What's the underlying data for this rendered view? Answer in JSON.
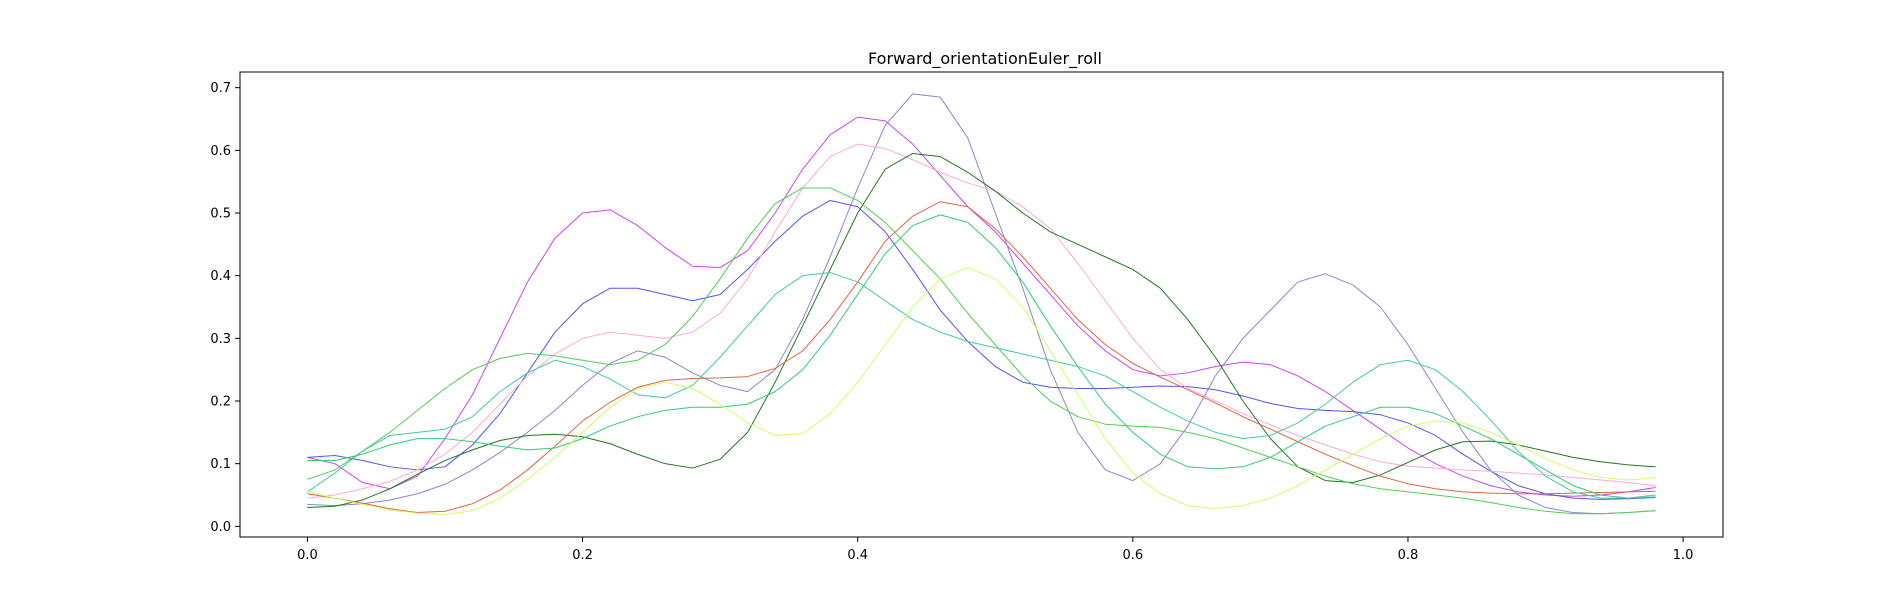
{
  "chart_data": {
    "type": "line",
    "title": "Forward_orientationEuler_roll",
    "xlabel": "",
    "ylabel": "",
    "xlim": [
      -0.049,
      1.029
    ],
    "ylim": [
      -0.017,
      0.725
    ],
    "xticks": [
      0.0,
      0.2,
      0.4,
      0.6,
      0.8,
      1.0
    ],
    "xtick_labels": [
      "0.0",
      "0.2",
      "0.4",
      "0.6",
      "0.8",
      "1.0"
    ],
    "yticks": [
      0.0,
      0.1,
      0.2,
      0.3,
      0.4,
      0.5,
      0.6,
      0.7
    ],
    "ytick_labels": [
      "0.0",
      "0.1",
      "0.2",
      "0.3",
      "0.4",
      "0.5",
      "0.6",
      "0.7"
    ],
    "grid": false,
    "x": [
      0.0,
      0.02,
      0.04,
      0.06,
      0.08,
      0.1,
      0.12,
      0.14,
      0.16,
      0.18,
      0.2,
      0.22,
      0.24,
      0.26,
      0.28,
      0.3,
      0.32,
      0.34,
      0.36,
      0.38,
      0.4,
      0.42,
      0.44,
      0.46,
      0.48,
      0.5,
      0.52,
      0.54,
      0.56,
      0.58,
      0.6,
      0.62,
      0.64,
      0.66,
      0.68,
      0.7,
      0.72,
      0.74,
      0.76,
      0.78,
      0.8,
      0.82,
      0.84,
      0.86,
      0.88,
      0.9,
      0.92,
      0.94,
      0.96,
      0.98
    ],
    "series": [
      {
        "name": "magenta",
        "color": "#cc44ee",
        "values": [
          0.11,
          0.1,
          0.07,
          0.06,
          0.08,
          0.14,
          0.21,
          0.3,
          0.39,
          0.46,
          0.5,
          0.505,
          0.48,
          0.445,
          0.415,
          0.413,
          0.44,
          0.5,
          0.57,
          0.625,
          0.653,
          0.647,
          0.61,
          0.56,
          0.51,
          0.47,
          0.42,
          0.37,
          0.32,
          0.28,
          0.25,
          0.24,
          0.245,
          0.255,
          0.262,
          0.258,
          0.24,
          0.215,
          0.185,
          0.155,
          0.125,
          0.1,
          0.08,
          0.065,
          0.055,
          0.05,
          0.048,
          0.05,
          0.055,
          0.062
        ]
      },
      {
        "name": "lavender",
        "color": "#8888cc",
        "values": [
          0.035,
          0.033,
          0.036,
          0.042,
          0.052,
          0.067,
          0.09,
          0.118,
          0.15,
          0.185,
          0.225,
          0.26,
          0.28,
          0.27,
          0.245,
          0.225,
          0.215,
          0.25,
          0.33,
          0.43,
          0.54,
          0.64,
          0.69,
          0.685,
          0.62,
          0.5,
          0.38,
          0.25,
          0.15,
          0.09,
          0.073,
          0.1,
          0.16,
          0.24,
          0.3,
          0.345,
          0.39,
          0.403,
          0.385,
          0.35,
          0.29,
          0.22,
          0.15,
          0.09,
          0.05,
          0.03,
          0.022,
          0.02,
          0.022,
          0.025
        ]
      },
      {
        "name": "blue",
        "color": "#5555ee",
        "values": [
          0.11,
          0.113,
          0.105,
          0.095,
          0.09,
          0.095,
          0.13,
          0.18,
          0.245,
          0.31,
          0.355,
          0.38,
          0.38,
          0.37,
          0.36,
          0.37,
          0.41,
          0.455,
          0.495,
          0.52,
          0.51,
          0.47,
          0.41,
          0.345,
          0.295,
          0.255,
          0.23,
          0.222,
          0.22,
          0.22,
          0.222,
          0.224,
          0.223,
          0.218,
          0.208,
          0.196,
          0.188,
          0.185,
          0.183,
          0.178,
          0.165,
          0.145,
          0.115,
          0.088,
          0.065,
          0.052,
          0.045,
          0.043,
          0.044,
          0.046
        ]
      },
      {
        "name": "pink",
        "color": "#ffaad4",
        "values": [
          0.045,
          0.05,
          0.06,
          0.072,
          0.09,
          0.115,
          0.15,
          0.195,
          0.24,
          0.275,
          0.3,
          0.31,
          0.305,
          0.3,
          0.31,
          0.34,
          0.395,
          0.47,
          0.54,
          0.59,
          0.61,
          0.603,
          0.585,
          0.565,
          0.548,
          0.535,
          0.51,
          0.475,
          0.42,
          0.36,
          0.3,
          0.25,
          0.22,
          0.2,
          0.18,
          0.162,
          0.145,
          0.13,
          0.115,
          0.103,
          0.096,
          0.093,
          0.09,
          0.088,
          0.085,
          0.082,
          0.078,
          0.074,
          0.07,
          0.065
        ]
      },
      {
        "name": "dark-green",
        "color": "#227722",
        "values": [
          0.03,
          0.032,
          0.042,
          0.06,
          0.083,
          0.105,
          0.122,
          0.137,
          0.145,
          0.147,
          0.143,
          0.132,
          0.115,
          0.1,
          0.093,
          0.107,
          0.15,
          0.23,
          0.32,
          0.41,
          0.5,
          0.57,
          0.595,
          0.59,
          0.565,
          0.535,
          0.5,
          0.47,
          0.45,
          0.43,
          0.41,
          0.38,
          0.33,
          0.27,
          0.2,
          0.14,
          0.095,
          0.073,
          0.07,
          0.082,
          0.102,
          0.122,
          0.135,
          0.136,
          0.13,
          0.12,
          0.11,
          0.103,
          0.098,
          0.095
        ]
      },
      {
        "name": "orange",
        "color": "#dd6644",
        "values": [
          0.052,
          0.045,
          0.037,
          0.028,
          0.022,
          0.024,
          0.036,
          0.058,
          0.09,
          0.128,
          0.168,
          0.198,
          0.222,
          0.233,
          0.236,
          0.237,
          0.239,
          0.252,
          0.28,
          0.33,
          0.39,
          0.455,
          0.495,
          0.518,
          0.51,
          0.475,
          0.43,
          0.38,
          0.33,
          0.29,
          0.26,
          0.238,
          0.218,
          0.197,
          0.175,
          0.155,
          0.135,
          0.115,
          0.097,
          0.08,
          0.068,
          0.06,
          0.055,
          0.053,
          0.052,
          0.052,
          0.053,
          0.054,
          0.055,
          0.056
        ]
      },
      {
        "name": "teal-green",
        "color": "#33cc77",
        "values": [
          0.105,
          0.105,
          0.115,
          0.13,
          0.14,
          0.14,
          0.135,
          0.128,
          0.122,
          0.125,
          0.14,
          0.16,
          0.175,
          0.185,
          0.19,
          0.19,
          0.195,
          0.215,
          0.25,
          0.305,
          0.37,
          0.435,
          0.48,
          0.497,
          0.485,
          0.445,
          0.39,
          0.32,
          0.255,
          0.195,
          0.15,
          0.115,
          0.095,
          0.092,
          0.095,
          0.11,
          0.135,
          0.16,
          0.175,
          0.19,
          0.19,
          0.18,
          0.16,
          0.14,
          0.115,
          0.09,
          0.065,
          0.05,
          0.045,
          0.047
        ]
      },
      {
        "name": "green",
        "color": "#55cc55",
        "values": [
          0.075,
          0.09,
          0.12,
          0.15,
          0.185,
          0.22,
          0.25,
          0.268,
          0.276,
          0.272,
          0.265,
          0.258,
          0.265,
          0.29,
          0.335,
          0.395,
          0.46,
          0.515,
          0.54,
          0.54,
          0.52,
          0.485,
          0.44,
          0.395,
          0.34,
          0.29,
          0.24,
          0.2,
          0.175,
          0.163,
          0.16,
          0.158,
          0.15,
          0.14,
          0.125,
          0.11,
          0.095,
          0.08,
          0.068,
          0.06,
          0.055,
          0.05,
          0.045,
          0.038,
          0.03,
          0.024,
          0.02,
          0.02,
          0.022,
          0.025
        ]
      },
      {
        "name": "sea-green",
        "color": "#44cc99",
        "values": [
          0.055,
          0.085,
          0.12,
          0.145,
          0.15,
          0.155,
          0.175,
          0.215,
          0.245,
          0.265,
          0.255,
          0.235,
          0.21,
          0.205,
          0.225,
          0.27,
          0.32,
          0.37,
          0.4,
          0.405,
          0.39,
          0.36,
          0.33,
          0.31,
          0.295,
          0.285,
          0.275,
          0.265,
          0.255,
          0.24,
          0.215,
          0.19,
          0.168,
          0.15,
          0.14,
          0.145,
          0.165,
          0.195,
          0.23,
          0.258,
          0.265,
          0.25,
          0.215,
          0.17,
          0.12,
          0.08,
          0.055,
          0.045,
          0.045,
          0.05
        ]
      },
      {
        "name": "lime",
        "color": "#ccff66",
        "values": [
          0.055,
          0.045,
          0.035,
          0.026,
          0.021,
          0.019,
          0.025,
          0.045,
          0.075,
          0.11,
          0.15,
          0.19,
          0.22,
          0.23,
          0.22,
          0.195,
          0.165,
          0.145,
          0.148,
          0.18,
          0.23,
          0.29,
          0.35,
          0.395,
          0.413,
          0.395,
          0.35,
          0.28,
          0.21,
          0.14,
          0.085,
          0.052,
          0.033,
          0.028,
          0.033,
          0.045,
          0.065,
          0.09,
          0.115,
          0.14,
          0.16,
          0.168,
          0.165,
          0.15,
          0.13,
          0.108,
          0.09,
          0.078,
          0.074,
          0.078
        ]
      }
    ]
  }
}
